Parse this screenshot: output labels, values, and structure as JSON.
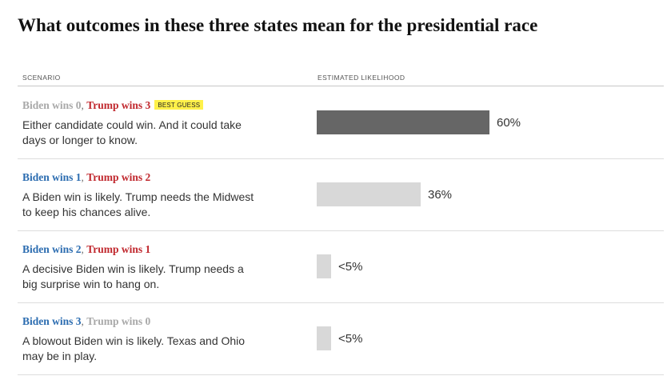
{
  "title": "What outcomes in these three states mean for the presidential race",
  "headers": {
    "scenario": "SCENARIO",
    "likelihood": "ESTIMATED LIKELIHOOD"
  },
  "colors": {
    "biden": "#2b6cb0",
    "trump": "#c0272d",
    "neutral": "#a8a8a8",
    "bar_highlight": "#666666",
    "bar_default": "#d8d8d8",
    "badge": "#fff14a"
  },
  "chart_data": {
    "type": "bar",
    "orientation": "horizontal",
    "categories": [
      "Biden wins 0, Trump wins 3",
      "Biden wins 1, Trump wins 2",
      "Biden wins 2, Trump wins 1",
      "Biden wins 3, Trump wins 0"
    ],
    "values": [
      60,
      36,
      5,
      5
    ],
    "value_labels": [
      "60%",
      "36%",
      "<5%",
      "<5%"
    ],
    "xlim": [
      0,
      100
    ],
    "highlight_index": 0,
    "rows": [
      {
        "biden": "Biden wins 0",
        "trump": "Trump wins 3",
        "biden_color": "neutral",
        "trump_color": "trump",
        "badge": "BEST GUESS",
        "description": "Either candidate could win. And it could take days or longer to know.",
        "value": 60,
        "label": "60%"
      },
      {
        "biden": "Biden wins 1",
        "trump": "Trump wins 2",
        "biden_color": "biden",
        "trump_color": "trump",
        "badge": "",
        "description": "A Biden win is likely. Trump needs the Midwest to keep his chances alive.",
        "value": 36,
        "label": "36%"
      },
      {
        "biden": "Biden wins 2",
        "trump": "Trump wins 1",
        "biden_color": "biden",
        "trump_color": "trump",
        "badge": "",
        "description": "A decisive Biden win is likely. Trump needs a big surprise win to hang on.",
        "value": 5,
        "label": "<5%"
      },
      {
        "biden": "Biden wins 3",
        "trump": "Trump wins 0",
        "biden_color": "biden",
        "trump_color": "neutral",
        "badge": "",
        "description": "A blowout Biden win is likely. Texas and Ohio may be in play.",
        "value": 5,
        "label": "<5%"
      }
    ]
  }
}
